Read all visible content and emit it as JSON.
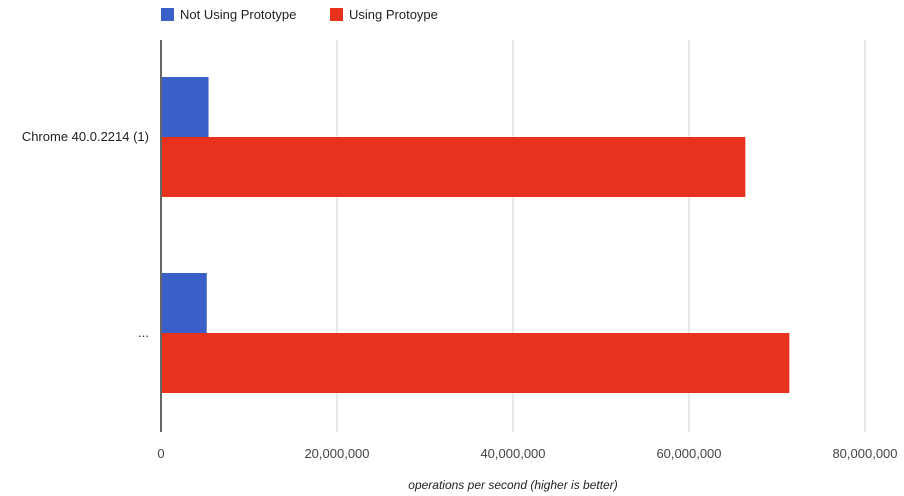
{
  "chart_data": {
    "type": "bar",
    "orientation": "horizontal",
    "categories": [
      "Chrome 40.0.2214 (1)",
      "..."
    ],
    "series": [
      {
        "name": "Not Using Prototype",
        "color": "#3a5fc8",
        "values": [
          5400000,
          5200000
        ]
      },
      {
        "name": "Using Protoype",
        "color": "#e8321e",
        "values": [
          66400000,
          71400000
        ]
      }
    ],
    "xlabel": "operations per second (higher is better)",
    "xlim": [
      0,
      80000000
    ],
    "xticks": [
      {
        "value": 0,
        "label": "0"
      },
      {
        "value": 20000000,
        "label": "20,000,000"
      },
      {
        "value": 40000000,
        "label": "40,000,000"
      },
      {
        "value": 60000000,
        "label": "60,000,000"
      },
      {
        "value": 80000000,
        "label": "80,000,000"
      }
    ],
    "grid": true,
    "legend_position": "top-left"
  }
}
